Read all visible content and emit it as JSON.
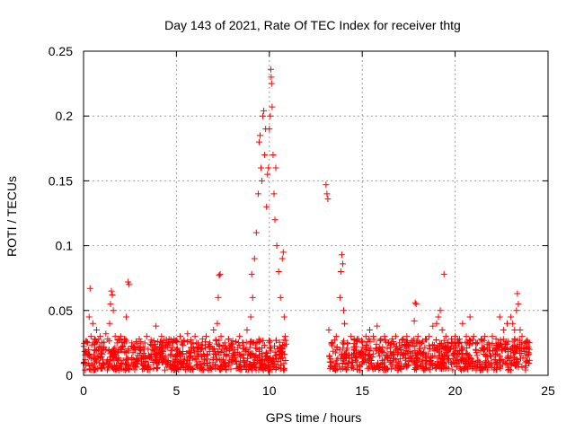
{
  "chart_data": {
    "type": "scatter",
    "title": "Day 143 of 2021, Rate Of TEC Index for receiver thtg",
    "xlabel": "GPS time / hours",
    "ylabel": "ROTI / TECUs",
    "xlim": [
      0,
      25
    ],
    "ylim": [
      0,
      0.25
    ],
    "xticks": [
      0,
      5,
      10,
      15,
      20,
      25
    ],
    "xtick_labels": [
      "0",
      "5",
      "10",
      "15",
      "20",
      "25"
    ],
    "yticks": [
      0,
      0.05,
      0.1,
      0.15,
      0.2,
      0.25
    ],
    "ytick_labels": [
      "0",
      "0.05",
      "0.1",
      "0.15",
      "0.2",
      "0.25"
    ],
    "grid": true,
    "marker": "plus",
    "marker_color": "#ff0000",
    "series": [
      {
        "name": "ROTI",
        "points": [
          [
            0.1,
            0.012
          ],
          [
            0.2,
            0.025
          ],
          [
            0.3,
            0.045
          ],
          [
            0.35,
            0.067
          ],
          [
            0.4,
            0.03
          ],
          [
            0.5,
            0.04
          ],
          [
            0.6,
            0.028
          ],
          [
            0.7,
            0.035
          ],
          [
            0.8,
            0.02
          ],
          [
            0.9,
            0.03
          ],
          [
            1.0,
            0.025
          ],
          [
            1.1,
            0.022
          ],
          [
            1.2,
            0.032
          ],
          [
            1.3,
            0.028
          ],
          [
            1.4,
            0.04
          ],
          [
            1.45,
            0.055
          ],
          [
            1.5,
            0.065
          ],
          [
            1.55,
            0.062
          ],
          [
            1.6,
            0.05
          ],
          [
            1.7,
            0.03
          ],
          [
            1.8,
            0.025
          ],
          [
            1.9,
            0.02
          ],
          [
            2.0,
            0.03
          ],
          [
            2.1,
            0.022
          ],
          [
            2.2,
            0.028
          ],
          [
            2.3,
            0.045
          ],
          [
            2.4,
            0.072
          ],
          [
            2.45,
            0.07
          ],
          [
            2.6,
            0.025
          ],
          [
            2.8,
            0.02
          ],
          [
            3.0,
            0.028
          ],
          [
            3.2,
            0.022
          ],
          [
            3.4,
            0.03
          ],
          [
            3.6,
            0.024
          ],
          [
            3.8,
            0.02
          ],
          [
            3.9,
            0.038
          ],
          [
            4.0,
            0.026
          ],
          [
            4.2,
            0.03
          ],
          [
            4.4,
            0.022
          ],
          [
            4.6,
            0.028
          ],
          [
            4.8,
            0.025
          ],
          [
            5.0,
            0.02
          ],
          [
            5.2,
            0.03
          ],
          [
            5.4,
            0.027
          ],
          [
            5.6,
            0.032
          ],
          [
            5.8,
            0.025
          ],
          [
            6.0,
            0.03
          ],
          [
            6.2,
            0.022
          ],
          [
            6.4,
            0.028
          ],
          [
            6.6,
            0.03
          ],
          [
            6.8,
            0.025
          ],
          [
            7.0,
            0.035
          ],
          [
            7.2,
            0.04
          ],
          [
            7.25,
            0.06
          ],
          [
            7.3,
            0.077
          ],
          [
            7.35,
            0.078
          ],
          [
            7.4,
            0.03
          ],
          [
            7.6,
            0.025
          ],
          [
            7.8,
            0.028
          ],
          [
            8.0,
            0.022
          ],
          [
            8.2,
            0.026
          ],
          [
            8.4,
            0.03
          ],
          [
            8.6,
            0.025
          ],
          [
            8.8,
            0.035
          ],
          [
            9.0,
            0.045
          ],
          [
            9.05,
            0.078
          ],
          [
            9.1,
            0.06
          ],
          [
            9.2,
            0.09
          ],
          [
            9.3,
            0.11
          ],
          [
            9.4,
            0.14
          ],
          [
            9.45,
            0.18
          ],
          [
            9.5,
            0.185
          ],
          [
            9.55,
            0.16
          ],
          [
            9.6,
            0.15
          ],
          [
            9.65,
            0.2
          ],
          [
            9.7,
            0.204
          ],
          [
            9.75,
            0.17
          ],
          [
            9.8,
            0.19
          ],
          [
            9.85,
            0.13
          ],
          [
            9.9,
            0.155
          ],
          [
            9.95,
            0.16
          ],
          [
            10.0,
            0.19
          ],
          [
            10.05,
            0.2
          ],
          [
            10.08,
            0.236
          ],
          [
            10.1,
            0.23
          ],
          [
            10.12,
            0.225
          ],
          [
            10.15,
            0.207
          ],
          [
            10.2,
            0.17
          ],
          [
            10.25,
            0.14
          ],
          [
            10.3,
            0.12
          ],
          [
            10.35,
            0.16
          ],
          [
            10.4,
            0.1
          ],
          [
            10.5,
            0.08
          ],
          [
            10.6,
            0.06
          ],
          [
            10.7,
            0.09
          ],
          [
            10.75,
            0.095
          ],
          [
            10.8,
            0.045
          ],
          [
            10.85,
            0.03
          ],
          [
            13.05,
            0.147
          ],
          [
            13.1,
            0.14
          ],
          [
            13.15,
            0.136
          ],
          [
            13.2,
            0.035
          ],
          [
            13.4,
            0.025
          ],
          [
            13.6,
            0.03
          ],
          [
            13.8,
            0.06
          ],
          [
            13.85,
            0.08
          ],
          [
            13.9,
            0.093
          ],
          [
            13.95,
            0.086
          ],
          [
            14.0,
            0.05
          ],
          [
            14.05,
            0.04
          ],
          [
            14.2,
            0.025
          ],
          [
            14.4,
            0.03
          ],
          [
            14.6,
            0.022
          ],
          [
            14.8,
            0.028
          ],
          [
            15.0,
            0.025
          ],
          [
            15.2,
            0.03
          ],
          [
            15.4,
            0.035
          ],
          [
            15.6,
            0.03
          ],
          [
            15.8,
            0.038
          ],
          [
            16.0,
            0.028
          ],
          [
            16.2,
            0.03
          ],
          [
            16.4,
            0.025
          ],
          [
            16.6,
            0.028
          ],
          [
            16.8,
            0.03
          ],
          [
            17.0,
            0.025
          ],
          [
            17.2,
            0.028
          ],
          [
            17.4,
            0.03
          ],
          [
            17.6,
            0.025
          ],
          [
            17.8,
            0.042
          ],
          [
            17.85,
            0.056
          ],
          [
            17.9,
            0.055
          ],
          [
            18.0,
            0.03
          ],
          [
            18.2,
            0.025
          ],
          [
            18.4,
            0.028
          ],
          [
            18.6,
            0.03
          ],
          [
            18.8,
            0.038
          ],
          [
            19.0,
            0.04
          ],
          [
            19.1,
            0.045
          ],
          [
            19.2,
            0.05
          ],
          [
            19.3,
            0.035
          ],
          [
            19.4,
            0.078
          ],
          [
            19.5,
            0.03
          ],
          [
            19.6,
            0.025
          ],
          [
            19.8,
            0.028
          ],
          [
            20.0,
            0.03
          ],
          [
            20.2,
            0.025
          ],
          [
            20.4,
            0.04
          ],
          [
            20.6,
            0.03
          ],
          [
            20.8,
            0.045
          ],
          [
            21.0,
            0.03
          ],
          [
            21.2,
            0.025
          ],
          [
            21.4,
            0.028
          ],
          [
            21.6,
            0.03
          ],
          [
            21.8,
            0.025
          ],
          [
            22.0,
            0.03
          ],
          [
            22.2,
            0.028
          ],
          [
            22.4,
            0.045
          ],
          [
            22.6,
            0.035
          ],
          [
            22.8,
            0.04
          ],
          [
            23.0,
            0.045
          ],
          [
            23.1,
            0.04
          ],
          [
            23.2,
            0.035
          ],
          [
            23.3,
            0.05
          ],
          [
            23.35,
            0.063
          ],
          [
            23.4,
            0.055
          ],
          [
            23.5,
            0.035
          ],
          [
            23.6,
            0.03
          ],
          [
            23.8,
            0.025
          ],
          [
            24.0,
            0.02
          ]
        ],
        "baseline_band": {
          "segments": [
            [
              0.0,
              10.9
            ],
            [
              13.2,
              24.0
            ]
          ],
          "y_range": [
            0.004,
            0.028
          ],
          "density_per_hour": 70
        }
      }
    ]
  }
}
